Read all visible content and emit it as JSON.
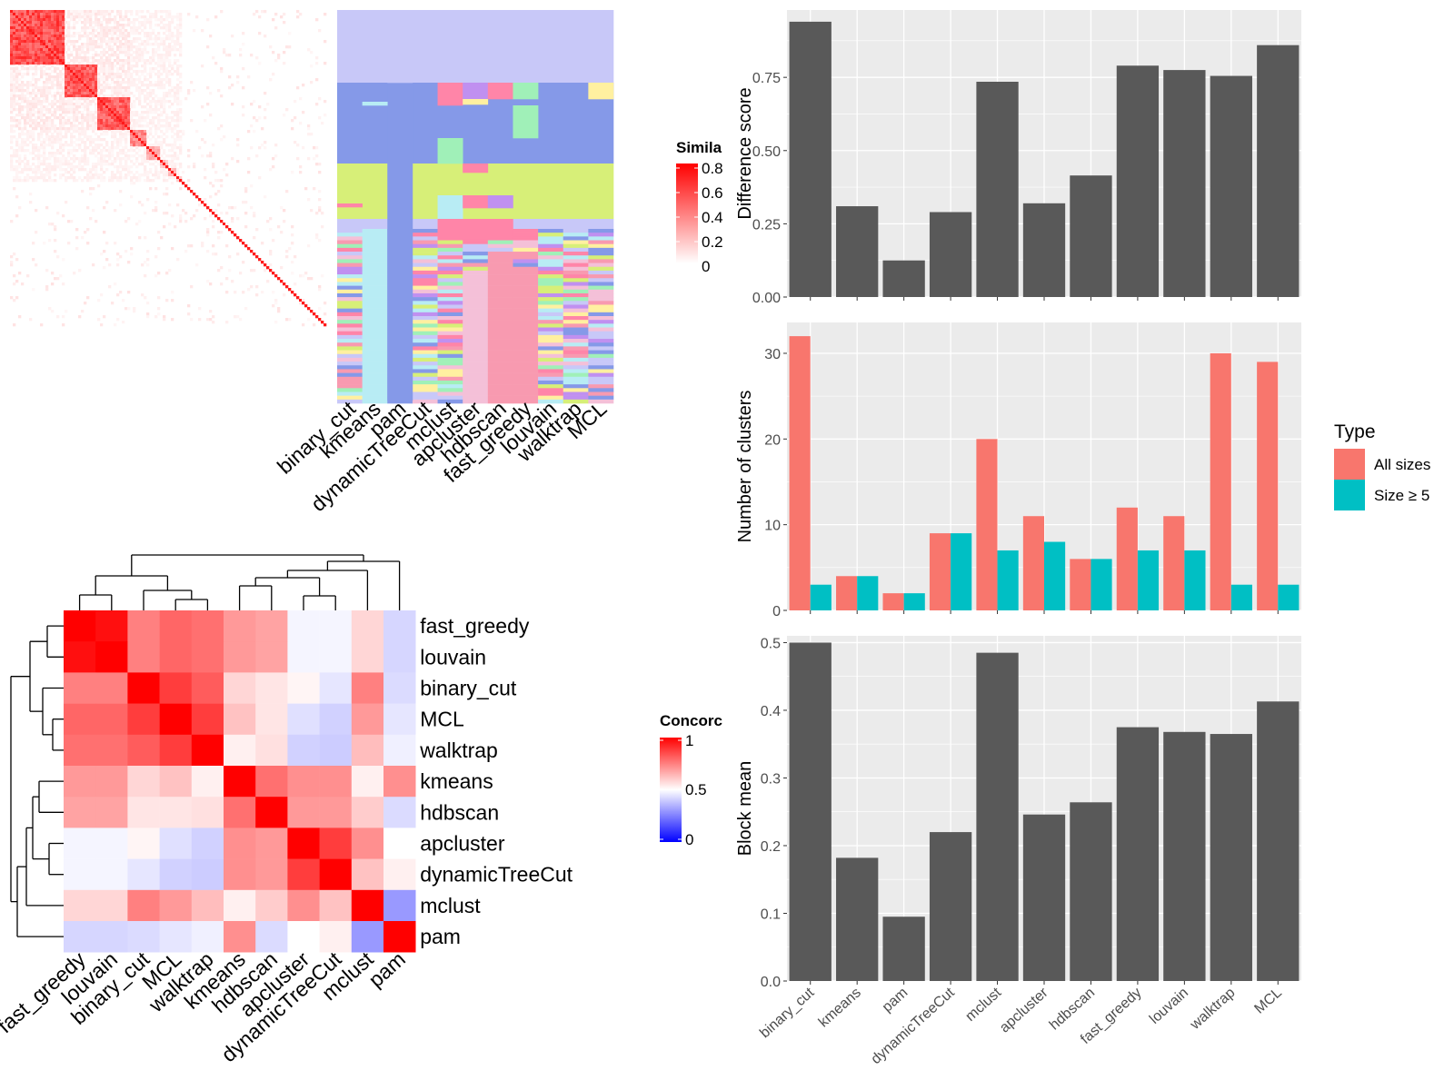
{
  "colors": {
    "panel_bg": "#ebebeb",
    "grid": "#ffffff",
    "bar": "#595959",
    "all_sizes": "#f8766d",
    "size_ge5": "#00bfc4",
    "heat_high": "#ff0000",
    "heat_mid": "#ffffff",
    "heat_low": "#0000ff"
  },
  "similarity_legend": {
    "title": "Simila",
    "ticks": [
      "0.8",
      "0.6",
      "0.4",
      "0.2",
      "0"
    ]
  },
  "concordance_legend": {
    "title": "Concorc",
    "ticks": [
      "1",
      "0.5",
      "0"
    ]
  },
  "membership_methods": [
    "binary_cut",
    "kmeans",
    "pam",
    "dynamicTreeCut",
    "mclust",
    "apcluster",
    "hdbscan",
    "fast_greedy",
    "louvain",
    "walktrap",
    "MCL"
  ],
  "chart_data": [
    {
      "type": "bar",
      "categories": [
        "binary_cut",
        "kmeans",
        "pam",
        "dynamicTreeCut",
        "mclust",
        "apcluster",
        "hdbscan",
        "fast_greedy",
        "louvain",
        "walktrap",
        "MCL"
      ],
      "values": [
        0.94,
        0.31,
        0.125,
        0.29,
        0.735,
        0.32,
        0.415,
        0.79,
        0.775,
        0.755,
        0.86
      ],
      "ylabel": "Difference score",
      "ylim": [
        0,
        0.98
      ],
      "yticks": [
        "0.00",
        "0.25",
        "0.50",
        "0.75"
      ]
    },
    {
      "type": "bar",
      "categories": [
        "binary_cut",
        "kmeans",
        "pam",
        "dynamicTreeCut",
        "mclust",
        "apcluster",
        "hdbscan",
        "fast_greedy",
        "louvain",
        "walktrap",
        "MCL"
      ],
      "ylabel": "Number of clusters",
      "ylim": [
        0,
        33.6
      ],
      "yticks": [
        "0",
        "10",
        "20",
        "30"
      ],
      "legend_title": "Type",
      "legend_position": "right",
      "series": [
        {
          "name": "All sizes",
          "values": [
            32,
            4,
            2,
            9,
            20,
            11,
            6,
            12,
            11,
            30,
            29
          ]
        },
        {
          "name": "Size ≥ 5",
          "values": [
            3,
            4,
            2,
            9,
            7,
            8,
            6,
            7,
            7,
            3,
            3
          ]
        }
      ]
    },
    {
      "type": "bar",
      "categories": [
        "binary_cut",
        "kmeans",
        "pam",
        "dynamicTreeCut",
        "mclust",
        "apcluster",
        "hdbscan",
        "fast_greedy",
        "louvain",
        "walktrap",
        "MCL"
      ],
      "values": [
        0.5,
        0.182,
        0.095,
        0.22,
        0.485,
        0.246,
        0.264,
        0.375,
        0.368,
        0.365,
        0.413
      ],
      "ylabel": "Block mean",
      "ylim": [
        0,
        0.51
      ],
      "yticks": [
        "0.0",
        "0.1",
        "0.2",
        "0.3",
        "0.4",
        "0.5"
      ]
    },
    {
      "type": "heatmap",
      "legend_title": "Concorc",
      "rows": [
        "fast_greedy",
        "louvain",
        "binary_cut",
        "MCL",
        "walktrap",
        "kmeans",
        "hdbscan",
        "apcluster",
        "dynamicTreeCut",
        "mclust",
        "pam"
      ],
      "cols": [
        "fast_greedy",
        "louvain",
        "binary_cut",
        "MCL",
        "walktrap",
        "kmeans",
        "hdbscan",
        "apcluster",
        "dynamicTreeCut",
        "mclust",
        "pam"
      ],
      "values": [
        [
          1.0,
          0.97,
          0.75,
          0.8,
          0.78,
          0.7,
          0.68,
          0.48,
          0.48,
          0.58,
          0.42
        ],
        [
          0.97,
          1.0,
          0.75,
          0.8,
          0.78,
          0.7,
          0.68,
          0.48,
          0.48,
          0.58,
          0.42
        ],
        [
          0.75,
          0.75,
          1.0,
          0.88,
          0.82,
          0.58,
          0.55,
          0.52,
          0.45,
          0.75,
          0.43
        ],
        [
          0.8,
          0.8,
          0.88,
          1.0,
          0.88,
          0.62,
          0.55,
          0.44,
          0.41,
          0.7,
          0.45
        ],
        [
          0.78,
          0.78,
          0.82,
          0.88,
          1.0,
          0.53,
          0.56,
          0.41,
          0.4,
          0.63,
          0.47
        ],
        [
          0.7,
          0.7,
          0.58,
          0.62,
          0.53,
          1.0,
          0.78,
          0.72,
          0.72,
          0.53,
          0.72
        ],
        [
          0.68,
          0.68,
          0.55,
          0.55,
          0.56,
          0.78,
          1.0,
          0.7,
          0.7,
          0.6,
          0.43
        ],
        [
          0.48,
          0.48,
          0.52,
          0.44,
          0.41,
          0.72,
          0.7,
          1.0,
          0.88,
          0.72,
          0.5
        ],
        [
          0.48,
          0.48,
          0.45,
          0.41,
          0.4,
          0.72,
          0.7,
          0.88,
          1.0,
          0.62,
          0.53
        ],
        [
          0.58,
          0.58,
          0.75,
          0.7,
          0.63,
          0.53,
          0.6,
          0.72,
          0.62,
          1.0,
          0.3
        ],
        [
          0.42,
          0.42,
          0.43,
          0.45,
          0.47,
          0.72,
          0.43,
          0.5,
          0.53,
          0.3,
          1.0
        ]
      ]
    }
  ]
}
